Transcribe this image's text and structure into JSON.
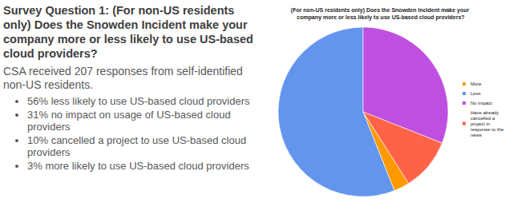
{
  "slide": {
    "heading": "Survey Question 1: (For non-US residents only) Does the Snowden Incident make your company more or less likely to use US-based cloud providers?",
    "intro": "CSA received 207 responses from self-identified non-US residents.",
    "bullets": [
      "56% less likely to use US-based cloud providers",
      "31% no impact on usage of US-based cloud providers",
      "10% cancelled a project to use US-based cloud providers",
      "3% more likely to use US-based cloud providers"
    ]
  },
  "chart_data": {
    "type": "pie",
    "title": "(For non-US residents only) Does the Snowden Incident make your company more or less likely to use US-based cloud providers?",
    "categories": [
      "More",
      "Less",
      "No impact",
      "Have already cancelled a project in response to the news"
    ],
    "values": [
      3,
      56,
      31,
      10
    ],
    "colors": [
      "#ff9900",
      "#6495ed",
      "#bf4fe0",
      "#ff6347"
    ],
    "legend": "right"
  }
}
